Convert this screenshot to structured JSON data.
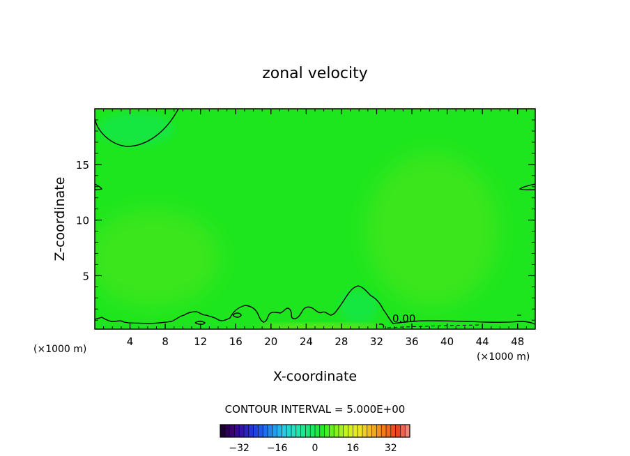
{
  "chart_data": {
    "type": "heatmap",
    "title": "zonal velocity",
    "xlabel": "X-coordinate",
    "ylabel": "Z-coordinate",
    "x_units": "(×1000 m)",
    "x_units_right": "(×1000 m)",
    "xlim": [
      0,
      50
    ],
    "ylim": [
      0.2,
      20
    ],
    "x_ticks": [
      4,
      8,
      12,
      16,
      20,
      24,
      28,
      32,
      36,
      40,
      44,
      48
    ],
    "y_ticks": [
      5,
      10,
      15
    ],
    "contour_interval_text": "CONTOUR INTERVAL = 5.000E+00",
    "contour_label": "0.00",
    "colorbar": {
      "min": -40,
      "max": 40,
      "ticks": [
        -32,
        -16,
        0,
        16,
        32
      ],
      "colors": [
        "#140020",
        "#3c0078",
        "#2d20c0",
        "#1e4ee6",
        "#1e8cf0",
        "#28c8e6",
        "#23e6b4",
        "#1ee678",
        "#1eeb28",
        "#78f01e",
        "#c8f51e",
        "#f0e628",
        "#f0b41e",
        "#f0781e",
        "#eb3c1e",
        "#f0968c"
      ]
    },
    "field_colors": {
      "background": "#1ee61e",
      "weak_positive": "#3ae61c",
      "moderate_positive": "#6ee614",
      "negative": "#17e640"
    }
  }
}
